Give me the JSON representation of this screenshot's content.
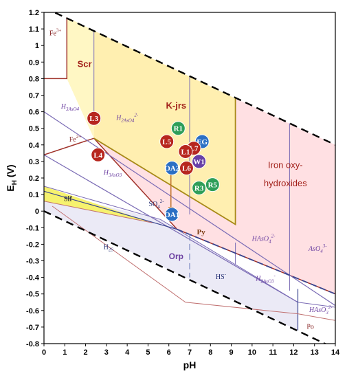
{
  "chart_data": {
    "type": "phase-diagram",
    "title": "",
    "xlabel": "pH",
    "ylabel": "EH (V)",
    "ylabel_main": "E",
    "ylabel_sub": "H",
    "ylabel_unit": " (V)",
    "xlim": [
      0,
      14
    ],
    "ylim": [
      -0.8,
      1.2
    ],
    "x_ticks": [
      0,
      1,
      2,
      3,
      4,
      5,
      6,
      7,
      8,
      9,
      10,
      11,
      12,
      13,
      14
    ],
    "y_ticks": [
      -0.8,
      -0.7,
      -0.6,
      -0.5,
      -0.4,
      -0.3,
      -0.2,
      -0.1,
      0,
      0.1,
      0.2,
      0.3,
      0.4,
      0.5,
      0.6,
      0.7,
      0.8,
      0.9,
      1,
      1.1,
      1.2
    ],
    "y_tick_labels": [
      "-0.8",
      "-0.7",
      "-0.6",
      "-0.5",
      "-0.4",
      "-0.3",
      "-0.2",
      "-0.1",
      "0",
      "0.1",
      "0.2",
      "0.3",
      "0.4",
      "0.5",
      "0.6",
      "0.7",
      "0.8",
      "0.9",
      "1",
      "1.1",
      "1.2"
    ],
    "colors": {
      "scr_fill": "#fff7c4",
      "kjrs_fill": "#ffefb0",
      "iron_fill": "#ffe0e3",
      "reduced_fill": "#ebeaf6",
      "slf_fill": "#f6f26e",
      "dark_red_line": "#a0322a",
      "olive_line": "#a88a18",
      "purple_line": "#7b6cb5",
      "navy_line": "#3a4590",
      "red_point": "#b7261e",
      "green_point": "#2e9e58",
      "blue_point": "#2b6fc4",
      "purple_point": "#6840a6",
      "purple_label": "#6b3fa0",
      "red_label": "#a3221b"
    },
    "water_stability_lines": [
      {
        "points": [
          [
            0,
            1.23
          ],
          [
            14,
            0.4
          ]
        ]
      },
      {
        "points": [
          [
            0,
            0.0
          ],
          [
            14,
            -0.83
          ]
        ]
      }
    ],
    "regions": [
      {
        "name": "Scr",
        "color": "#fff7c4",
        "polygon": [
          [
            1.1,
            1.17
          ],
          [
            2.4,
            1.09
          ],
          [
            2.4,
            0.44
          ],
          [
            1.1,
            0.8
          ]
        ]
      },
      {
        "name": "K-jrs",
        "color": "#ffefb0",
        "polygon": [
          [
            2.4,
            1.09
          ],
          [
            9.2,
            0.68
          ],
          [
            9.2,
            -0.08
          ],
          [
            5.4,
            0.21
          ],
          [
            2.4,
            0.44
          ]
        ]
      },
      {
        "name": "Iron oxy-hydroxides",
        "color": "#ffe0e3",
        "polygon": [
          [
            9.2,
            0.68
          ],
          [
            14,
            0.4
          ],
          [
            14,
            -0.5
          ],
          [
            6.4,
            -0.11
          ],
          [
            2.4,
            0.44
          ],
          [
            5.4,
            0.21
          ],
          [
            9.2,
            -0.08
          ]
        ]
      },
      {
        "name": "reduced field",
        "color": "#ebeaf6",
        "polygon": [
          [
            0,
            0.12
          ],
          [
            5.6,
            -0.05
          ],
          [
            12.2,
            -0.55
          ],
          [
            12.2,
            -0.72
          ],
          [
            0,
            0.0
          ]
        ]
      },
      {
        "name": "Slf",
        "color": "#f6f26e",
        "polygon": [
          [
            0,
            0.15
          ],
          [
            5.2,
            -0.07
          ],
          [
            0,
            0.06
          ]
        ]
      }
    ],
    "boundary_lines": [
      {
        "color": "#a0322a",
        "width": 1.5,
        "points": [
          [
            0,
            0.8
          ],
          [
            1.1,
            0.8
          ],
          [
            1.1,
            1.17
          ]
        ]
      },
      {
        "color": "#a0322a",
        "width": 1.5,
        "points": [
          [
            0,
            0.34
          ],
          [
            2.4,
            0.44
          ]
        ]
      },
      {
        "color": "#a0322a",
        "width": 1.5,
        "points": [
          [
            2.4,
            0.44
          ],
          [
            6.4,
            -0.11
          ],
          [
            14,
            -0.5
          ]
        ]
      },
      {
        "color": "#a88a18",
        "width": 1.8,
        "points": [
          [
            2.4,
            0.44
          ],
          [
            5.4,
            0.21
          ],
          [
            9.2,
            -0.08
          ],
          [
            9.2,
            0.68
          ]
        ]
      },
      {
        "color": "#7b6cb5",
        "width": 1.2,
        "points": [
          [
            0,
            0.6
          ],
          [
            14,
            -0.57
          ]
        ]
      },
      {
        "color": "#7b6cb5",
        "width": 1.2,
        "points": [
          [
            0,
            0.34
          ],
          [
            12.2,
            -0.55
          ]
        ]
      },
      {
        "color": "#7b6cb5",
        "width": 1.0,
        "points": [
          [
            2.4,
            1.09
          ],
          [
            2.4,
            0.6
          ]
        ]
      },
      {
        "color": "#7b6cb5",
        "width": 1.0,
        "points": [
          [
            7.0,
            0.81
          ],
          [
            7.0,
            -0.02
          ]
        ]
      },
      {
        "color": "#7b6cb5",
        "width": 1.0,
        "points": [
          [
            11.8,
            0.53
          ],
          [
            11.8,
            -0.48
          ]
        ]
      },
      {
        "color": "#7b6cb5",
        "width": 1.0,
        "points": [
          [
            9.2,
            -0.19
          ],
          [
            9.2,
            -0.32
          ]
        ]
      },
      {
        "color": "#7b6cb5",
        "width": 1.0,
        "points": [
          [
            0,
            0.15
          ],
          [
            5.6,
            -0.05
          ],
          [
            12.2,
            -0.55
          ],
          [
            14,
            -0.58
          ]
        ]
      },
      {
        "color": "#3a4590",
        "width": 1.2,
        "points": [
          [
            0,
            0.12
          ],
          [
            6.4,
            -0.11
          ]
        ]
      },
      {
        "color": "#3a4590",
        "width": 1.2,
        "points": [
          [
            12.2,
            -0.47
          ],
          [
            12.2,
            -0.72
          ]
        ]
      },
      {
        "color": "#c07070",
        "width": 1.0,
        "points": [
          [
            0,
            0.06
          ],
          [
            5.2,
            -0.07
          ]
        ]
      },
      {
        "color": "#c07070",
        "width": 1.0,
        "points": [
          [
            0.4,
            0.03
          ],
          [
            6.8,
            -0.55
          ],
          [
            12.2,
            -0.62
          ],
          [
            14,
            -0.66
          ]
        ]
      }
    ],
    "dashed_lines": [
      {
        "color": "#3a4590",
        "width": 1.8,
        "points": [
          [
            6.4,
            -0.11
          ],
          [
            14,
            -0.5
          ]
        ]
      },
      {
        "color": "#7b8ac0",
        "width": 1.2,
        "points": [
          [
            7.0,
            -0.14
          ],
          [
            7.0,
            -0.4
          ]
        ]
      }
    ],
    "arrow": {
      "color": "#c0722a",
      "from": [
        6.1,
        0.24
      ],
      "to": [
        6.1,
        0.01
      ]
    },
    "region_labels": [
      {
        "text": "Fe",
        "sup": "3+",
        "sub": "",
        "x": 0.55,
        "y": 1.06,
        "color": "#8a2a2a",
        "size": 10,
        "font": "serif",
        "italic": false,
        "bold": false
      },
      {
        "text": "Scr",
        "sup": "",
        "sub": "",
        "x": 1.95,
        "y": 0.87,
        "color": "#a3221b",
        "size": 13,
        "font": "sans",
        "italic": false,
        "bold": true
      },
      {
        "text": "K-jrs",
        "sup": "",
        "sub": "",
        "x": 6.35,
        "y": 0.62,
        "color": "#a3221b",
        "size": 13,
        "font": "sans",
        "italic": false,
        "bold": true
      },
      {
        "text": "Iron oxy-",
        "sup": "",
        "sub": "",
        "x": 11.6,
        "y": 0.26,
        "color": "#a3221b",
        "size": 13,
        "font": "sans",
        "italic": false,
        "bold": false
      },
      {
        "text": "hydroxides",
        "sup": "",
        "sub": "",
        "x": 11.6,
        "y": 0.15,
        "color": "#a3221b",
        "size": 13,
        "font": "sans",
        "italic": false,
        "bold": false
      },
      {
        "text": "Fe",
        "sup": "2+",
        "sub": "",
        "x": 1.5,
        "y": 0.42,
        "color": "#8a2a2a",
        "size": 10,
        "font": "serif",
        "italic": false,
        "bold": false
      },
      {
        "text": "H",
        "sup": "",
        "sub": "3AsO4",
        "x": 1.25,
        "y": 0.62,
        "color": "#6b3fa0",
        "size": 10,
        "font": "serif",
        "italic": true,
        "bold": false
      },
      {
        "text": "H",
        "sup": "2-",
        "sub": "2AsO4",
        "x": 4.0,
        "y": 0.55,
        "color": "#6b3fa0",
        "size": 10,
        "font": "serif",
        "italic": true,
        "bold": false
      },
      {
        "text": "H",
        "sup": "",
        "sub": "3AsO3",
        "x": 3.3,
        "y": 0.22,
        "color": "#6b3fa0",
        "size": 10,
        "font": "serif",
        "italic": true,
        "bold": false
      },
      {
        "text": "Slf",
        "sup": "",
        "sub": "",
        "x": 1.15,
        "y": 0.06,
        "color": "#333333",
        "size": 10,
        "font": "serif",
        "italic": false,
        "bold": true
      },
      {
        "text": "SO",
        "sup": "2-",
        "sub": "4",
        "x": 5.4,
        "y": 0.03,
        "color": "#1f2a70",
        "size": 10,
        "font": "serif",
        "italic": false,
        "bold": false
      },
      {
        "text": "H",
        "sup": "",
        "sub": "2S",
        "x": 3.1,
        "y": -0.23,
        "color": "#1f2a70",
        "size": 10,
        "font": "serif",
        "italic": false,
        "bold": false
      },
      {
        "text": "Py",
        "sup": "",
        "sub": "",
        "x": 7.55,
        "y": -0.14,
        "color": "#7a3b10",
        "size": 11,
        "font": "serif",
        "italic": false,
        "bold": true
      },
      {
        "text": "Orp",
        "sup": "",
        "sub": "",
        "x": 6.35,
        "y": -0.29,
        "color": "#6b3fa0",
        "size": 12,
        "font": "sans",
        "italic": false,
        "bold": true
      },
      {
        "text": "HAsO",
        "sup": "2-",
        "sub": "4",
        "x": 10.55,
        "y": -0.18,
        "color": "#6b3fa0",
        "size": 10,
        "font": "serif",
        "italic": true,
        "bold": false
      },
      {
        "text": "AsO",
        "sup": "3-",
        "sub": "4",
        "x": 13.15,
        "y": -0.24,
        "color": "#6b3fa0",
        "size": 10,
        "font": "serif",
        "italic": true,
        "bold": false
      },
      {
        "text": "HS",
        "sup": "-",
        "sub": "",
        "x": 8.5,
        "y": -0.41,
        "color": "#1f2a70",
        "size": 10,
        "font": "serif",
        "italic": false,
        "bold": false
      },
      {
        "text": "H",
        "sup": "-",
        "sub": "2AsO3",
        "x": 10.65,
        "y": -0.42,
        "color": "#6b3fa0",
        "size": 10,
        "font": "serif",
        "italic": true,
        "bold": false
      },
      {
        "text": "HAsO",
        "sup": "2-",
        "sub": "3",
        "x": 13.3,
        "y": -0.61,
        "color": "#6b3fa0",
        "size": 10,
        "font": "serif",
        "italic": true,
        "bold": false
      },
      {
        "text": "Po",
        "sup": "",
        "sub": "",
        "x": 12.8,
        "y": -0.71,
        "color": "#8a2a2a",
        "size": 10,
        "font": "serif",
        "italic": false,
        "bold": false
      }
    ],
    "points": [
      {
        "label": "L3",
        "x": 2.4,
        "y": 0.56,
        "color": "#b7261e"
      },
      {
        "label": "R1",
        "x": 6.45,
        "y": 0.5,
        "color": "#2e9e58"
      },
      {
        "label": "L5",
        "x": 5.9,
        "y": 0.42,
        "color": "#b7261e"
      },
      {
        "label": "EG",
        "x": 7.6,
        "y": 0.42,
        "color": "#2b6fc4"
      },
      {
        "label": "L7",
        "x": 7.2,
        "y": 0.38,
        "color": "#b7261e"
      },
      {
        "label": "L1",
        "x": 6.8,
        "y": 0.36,
        "color": "#b7261e"
      },
      {
        "label": "L4",
        "x": 2.6,
        "y": 0.34,
        "color": "#b7261e"
      },
      {
        "label": "W1",
        "x": 7.45,
        "y": 0.3,
        "color": "#6840a6"
      },
      {
        "label": "OA2",
        "x": 6.15,
        "y": 0.26,
        "color": "#2b6fc4"
      },
      {
        "label": "L6",
        "x": 6.85,
        "y": 0.26,
        "color": "#b7261e"
      },
      {
        "label": "R5",
        "x": 8.1,
        "y": 0.16,
        "color": "#2e9e58"
      },
      {
        "label": "R3",
        "x": 7.45,
        "y": 0.14,
        "color": "#2e9e58"
      },
      {
        "label": "OA1",
        "x": 6.15,
        "y": -0.02,
        "color": "#2b6fc4"
      }
    ]
  }
}
